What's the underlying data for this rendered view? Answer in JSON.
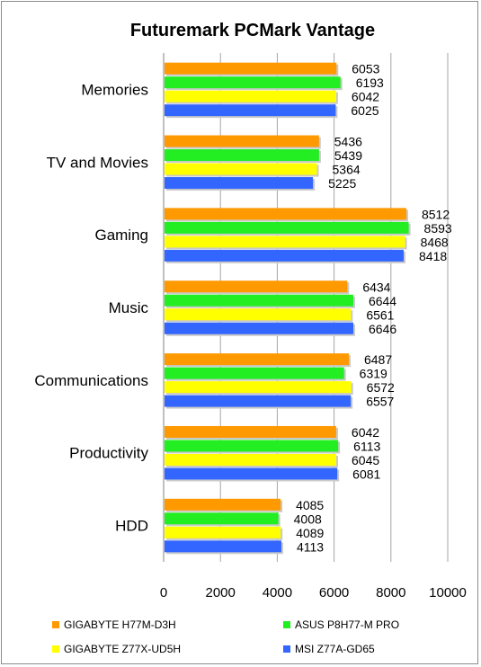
{
  "chart_data": {
    "type": "bar",
    "orientation": "horizontal",
    "title": "Futuremark PCMark Vantage",
    "xlabel": "",
    "ylabel": "",
    "xlim": [
      0,
      10000
    ],
    "ticks": [
      "0",
      "2000",
      "4000",
      "6000",
      "8000",
      "10000"
    ],
    "grid": "vertical",
    "legend_position": "bottom",
    "categories": [
      "Memories",
      "TV and Movies",
      "Gaming",
      "Music",
      "Communications",
      "Productivity",
      "HDD"
    ],
    "series": [
      {
        "name": "GIGABYTE H77M-D3H",
        "color": "#ff9900",
        "values": [
          6053,
          5436,
          8512,
          6434,
          6487,
          6042,
          4085
        ]
      },
      {
        "name": "ASUS P8H77-M PRO",
        "color": "#22ee22",
        "values": [
          6193,
          5439,
          8593,
          6644,
          6319,
          6113,
          4008
        ]
      },
      {
        "name": "GIGABYTE Z77X-UD5H",
        "color": "#ffff00",
        "values": [
          6042,
          5364,
          8468,
          6561,
          6572,
          6045,
          4089
        ]
      },
      {
        "name": "MSI Z77A-GD65",
        "color": "#3366ff",
        "values": [
          6025,
          5225,
          8418,
          6646,
          6557,
          6081,
          4113
        ]
      }
    ]
  }
}
